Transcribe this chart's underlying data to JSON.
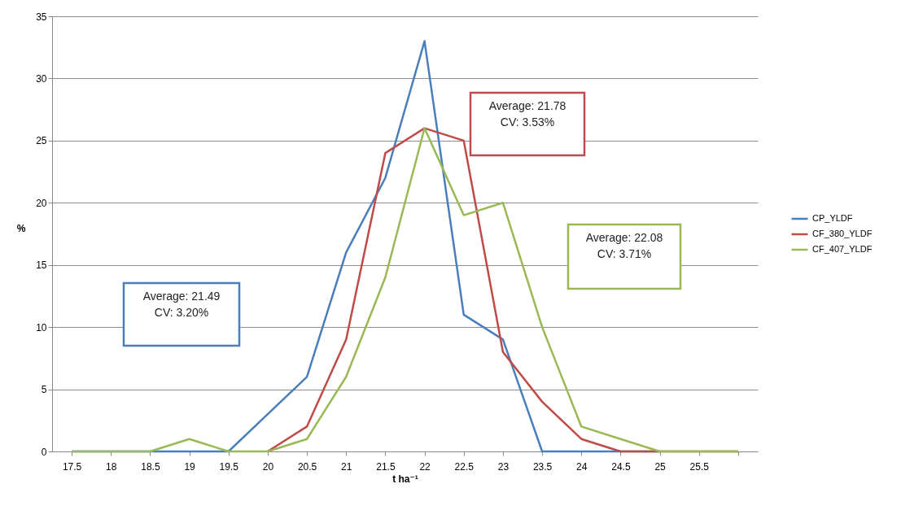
{
  "chart_data": {
    "type": "line",
    "xlabel": "t ha⁻¹",
    "ylabel": "%",
    "categories": [
      "17.5",
      "18",
      "18.5",
      "19",
      "19.5",
      "20",
      "20.5",
      "21",
      "21.5",
      "22",
      "22.5",
      "23",
      "23.5",
      "24",
      "24.5",
      "25",
      "25.5",
      null
    ],
    "series": [
      {
        "name": "CP_YLDF",
        "color": "#4a7ebb",
        "values": [
          0,
          0,
          0,
          0,
          0,
          3,
          6,
          16,
          22,
          33,
          11,
          9,
          0,
          0,
          0,
          0,
          null,
          null
        ]
      },
      {
        "name": "CF_380_YLDF",
        "color": "#be4b48",
        "values": [
          null,
          null,
          null,
          null,
          null,
          0,
          2,
          9,
          24,
          26,
          25,
          8,
          4,
          1,
          0,
          0,
          0,
          0
        ]
      },
      {
        "name": "CF_407_YLDF",
        "color": "#98b954",
        "values": [
          0,
          0,
          0,
          1,
          0,
          0,
          1,
          6,
          14,
          26,
          19,
          20,
          10,
          2,
          1,
          0,
          0,
          0
        ]
      }
    ],
    "ylim": [
      0,
      35
    ],
    "yticks": [
      0,
      5,
      10,
      15,
      20,
      25,
      30,
      35
    ],
    "grid": "y",
    "legend": "right",
    "marker": "none",
    "line_style": "solid",
    "annotations": [
      "Average: 21.49\nCV: 3.20%",
      "Average: 21.78\nCV: 3.53%",
      "Average: 22.08\nCV: 3.71%"
    ]
  }
}
